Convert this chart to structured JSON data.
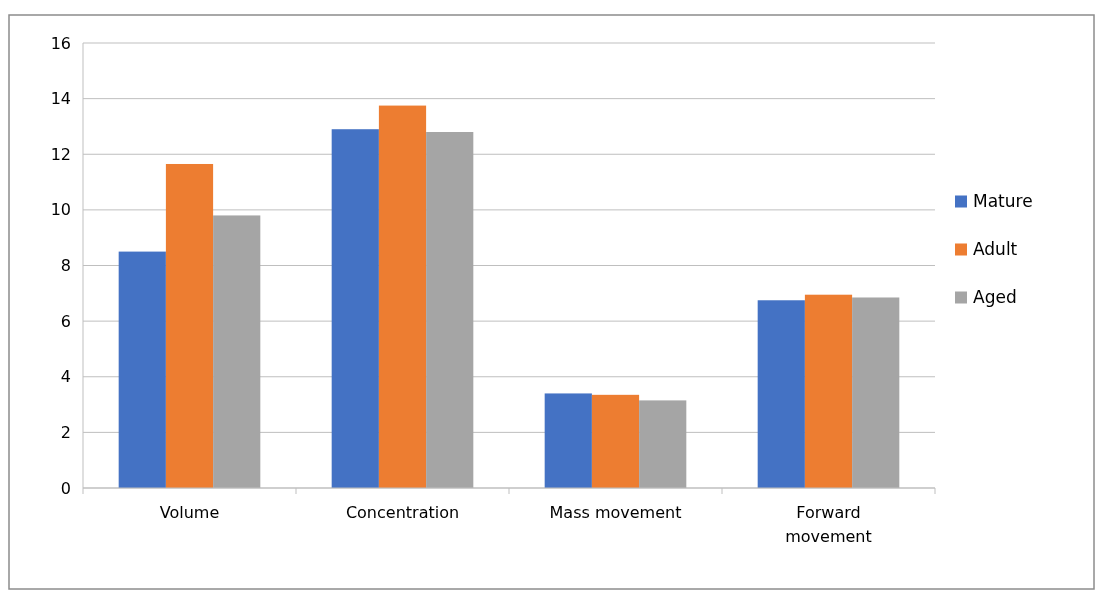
{
  "chart_data": {
    "type": "bar",
    "categories": [
      "Volume",
      "Concentration",
      "Mass movement",
      "Forward movement"
    ],
    "series": [
      {
        "name": "Mature",
        "color": "#4472c4",
        "values": [
          8.5,
          12.9,
          3.4,
          6.75
        ]
      },
      {
        "name": "Adult",
        "color": "#ed7d31",
        "values": [
          11.65,
          13.75,
          3.35,
          6.95
        ]
      },
      {
        "name": "Aged",
        "color": "#a5a5a5",
        "values": [
          9.8,
          12.8,
          3.15,
          6.85
        ]
      }
    ],
    "ylim": [
      0,
      16
    ],
    "yticks": [
      0,
      2,
      4,
      6,
      8,
      10,
      12,
      14,
      16
    ],
    "grid": "y",
    "legend": "right"
  }
}
